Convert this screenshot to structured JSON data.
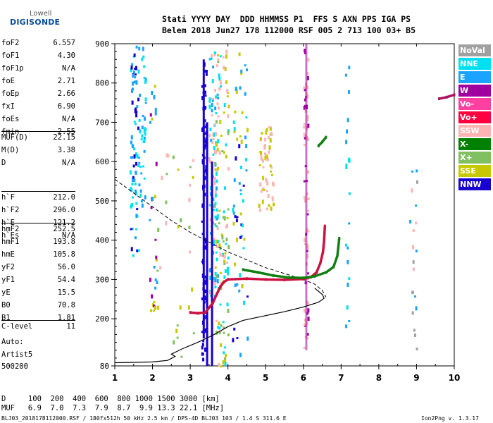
{
  "logo": {
    "line1": "Lowell",
    "line2": "DIGISONDE"
  },
  "header": {
    "line1": "Stati YYYY DAY  DDD HHMMSS P1  FFS S AXN PPS IGA PS",
    "line2": "Belem 2018 Jun27 178 112000 RSF 005 2 713 100 03+ B5"
  },
  "params": [
    [
      {
        "label": "foF2",
        "value": "6.557"
      },
      {
        "label": "foF1",
        "value": "4.30"
      },
      {
        "label": "foF1p",
        "value": "N/A"
      },
      {
        "label": "foE",
        "value": "2.71"
      },
      {
        "label": "foEp",
        "value": "2.66"
      },
      {
        "label": "fxI",
        "value": "6.90"
      },
      {
        "label": "foEs",
        "value": "N/A"
      },
      {
        "label": "fmin",
        "value": "2.55"
      }
    ],
    [
      {
        "label": "MUF(D)",
        "value": "22.15"
      },
      {
        "label": "M(D)",
        "value": "3.38"
      },
      {
        "label": "D",
        "value": "N/A"
      }
    ],
    [
      {
        "label": "h`F",
        "value": "212.0"
      },
      {
        "label": "h`F2",
        "value": "296.0"
      },
      {
        "label": "h`E",
        "value": "121.2"
      },
      {
        "label": "h`Es",
        "value": "N/A"
      }
    ],
    [
      {
        "label": "hmF2",
        "value": "252.5"
      },
      {
        "label": "hmF1",
        "value": "193.8"
      },
      {
        "label": "hmE",
        "value": "105.8"
      },
      {
        "label": "yF2",
        "value": "56.0"
      },
      {
        "label": "yF1",
        "value": "54.4"
      },
      {
        "label": "yE",
        "value": "15.5"
      },
      {
        "label": "B0",
        "value": "70.8"
      },
      {
        "label": "B1",
        "value": "1.81"
      }
    ],
    [
      {
        "label": "C-level",
        "value": "11"
      }
    ]
  ],
  "extra": {
    "label": "Auto:",
    "artist": "Artist5",
    "code": "500200"
  },
  "legend": [
    {
      "label": "NoVal",
      "color": "#a0a0a0"
    },
    {
      "label": "NNE",
      "color": "#00e0f0"
    },
    {
      "label": "E",
      "color": "#1aa3ff"
    },
    {
      "label": "W",
      "color": "#a000a0"
    },
    {
      "label": "Vo-",
      "color": "#ff40a0"
    },
    {
      "label": "Vo+",
      "color": "#ff0040"
    },
    {
      "label": "SSW",
      "color": "#ffb4b4"
    },
    {
      "label": "X-",
      "color": "#008000"
    },
    {
      "label": "X+",
      "color": "#80c060"
    },
    {
      "label": "SSE",
      "color": "#c8c800"
    },
    {
      "label": "NNW",
      "color": "#1800d0"
    }
  ],
  "bottom": {
    "d_row": "D     100  200  400  600  800 1000 1500 3000 [km]",
    "muf_row": "MUF   6.9  7.0  7.3  7.9  8.7  9.9 13.3 22.1 [MHz]"
  },
  "footer": {
    "left": "BLJ03_2018178112000.RSF / 180fx512h 50 kHz 2.5 km / DPS-4D BLJ03 103 / 1.4 S 311.6 E",
    "right": "Ion2Png v. 1.3.17"
  },
  "chart_data": {
    "type": "scatter",
    "xlim": [
      1,
      10
    ],
    "ylim": [
      80,
      900
    ],
    "x_ticks": [
      1,
      2,
      3,
      4,
      5,
      6,
      7,
      8,
      9,
      10
    ],
    "y_ticks": [
      80,
      200,
      300,
      400,
      500,
      600,
      700,
      800,
      900
    ],
    "y_tick_labels": [
      "80",
      "200",
      "300",
      "400",
      "500",
      "600",
      "700",
      "800",
      "900"
    ],
    "grid": false,
    "series": [
      {
        "name": "Vo+",
        "color": "#cc1040",
        "kind": "trace",
        "points": [
          [
            3.0,
            216
          ],
          [
            3.2,
            214
          ],
          [
            3.4,
            216
          ],
          [
            3.6,
            240
          ],
          [
            3.7,
            262
          ],
          [
            3.8,
            282
          ],
          [
            3.9,
            294
          ],
          [
            4.0,
            300
          ],
          [
            4.5,
            302
          ],
          [
            5.0,
            300
          ],
          [
            5.5,
            299
          ],
          [
            6.0,
            301
          ],
          [
            6.2,
            306
          ],
          [
            6.35,
            318
          ],
          [
            6.45,
            342
          ],
          [
            6.52,
            370
          ],
          [
            6.55,
            400
          ],
          [
            6.57,
            436
          ]
        ]
      },
      {
        "name": "X-",
        "color": "#108010",
        "kind": "trace",
        "points": [
          [
            4.4,
            325
          ],
          [
            4.8,
            318
          ],
          [
            5.2,
            310
          ],
          [
            5.6,
            305
          ],
          [
            6.0,
            304
          ],
          [
            6.3,
            308
          ],
          [
            6.6,
            318
          ],
          [
            6.8,
            332
          ],
          [
            6.9,
            360
          ],
          [
            6.95,
            405
          ]
        ]
      },
      {
        "name": "X- (upper)",
        "color": "#108010",
        "kind": "trace",
        "points": [
          [
            6.4,
            640
          ],
          [
            6.5,
            650
          ],
          [
            6.6,
            662
          ]
        ]
      },
      {
        "name": "W",
        "color": "#b01060",
        "kind": "trace",
        "points": [
          [
            9.6,
            760
          ],
          [
            9.8,
            764
          ],
          [
            10.0,
            770
          ]
        ]
      }
    ],
    "profile": {
      "color": "#000000",
      "points": [
        [
          1.0,
          88
        ],
        [
          1.5,
          89
        ],
        [
          2.0,
          90
        ],
        [
          2.4,
          94
        ],
        [
          2.6,
          104
        ],
        [
          2.5,
          110
        ],
        [
          2.8,
          124
        ],
        [
          3.2,
          140
        ],
        [
          3.6,
          158
        ],
        [
          4.0,
          180
        ],
        [
          4.4,
          196
        ],
        [
          5.0,
          208
        ],
        [
          5.5,
          218
        ],
        [
          6.0,
          230
        ],
        [
          6.4,
          242
        ],
        [
          6.55,
          252
        ],
        [
          6.5,
          262
        ],
        [
          6.3,
          278
        ]
      ]
    },
    "dashed": {
      "color": "#000000",
      "points": [
        [
          1.0,
          555
        ],
        [
          1.5,
          520
        ],
        [
          2.0,
          485
        ],
        [
          2.5,
          450
        ],
        [
          3.0,
          420
        ],
        [
          3.5,
          395
        ],
        [
          4.0,
          370
        ],
        [
          4.5,
          350
        ],
        [
          5.0,
          330
        ],
        [
          5.5,
          315
        ],
        [
          6.0,
          300
        ],
        [
          6.3,
          288
        ],
        [
          6.5,
          272
        ],
        [
          6.6,
          255
        ]
      ]
    }
  }
}
